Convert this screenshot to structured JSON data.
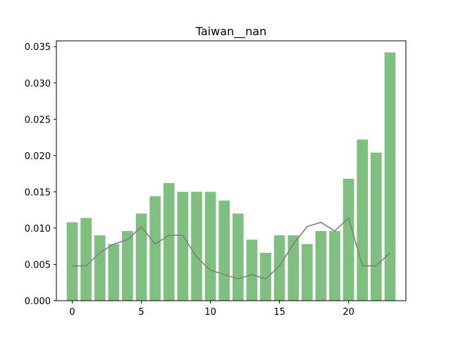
{
  "chart_data": {
    "type": "bar",
    "title": "Taiwan__nan",
    "xlabel": "",
    "ylabel": "",
    "x": [
      0,
      1,
      2,
      3,
      4,
      5,
      6,
      7,
      8,
      9,
      10,
      11,
      12,
      13,
      14,
      15,
      16,
      17,
      18,
      19,
      20,
      21,
      22,
      23
    ],
    "series": [
      {
        "type": "bar",
        "color": "#7fbf7f",
        "values": [
          0.0108,
          0.0114,
          0.009,
          0.0078,
          0.0096,
          0.012,
          0.0144,
          0.0162,
          0.015,
          0.015,
          0.015,
          0.0138,
          0.012,
          0.0084,
          0.0066,
          0.009,
          0.009,
          0.0078,
          0.0096,
          0.0096,
          0.0168,
          0.0222,
          0.0204,
          0.0342
        ]
      },
      {
        "type": "line",
        "color": "#808080",
        "values": [
          0.0048,
          0.0048,
          0.0066,
          0.0078,
          0.0084,
          0.0102,
          0.0078,
          0.009,
          0.009,
          0.006,
          0.0042,
          0.0036,
          0.003,
          0.0036,
          0.003,
          0.0048,
          0.0078,
          0.0102,
          0.0108,
          0.0096,
          0.0114,
          0.0048,
          0.0048,
          0.0066
        ]
      }
    ],
    "xlim": [
      -1.15,
      24.15
    ],
    "ylim": [
      0,
      0.0358
    ],
    "xticks": [
      0,
      5,
      10,
      15,
      20
    ],
    "xtick_labels": [
      "0",
      "5",
      "10",
      "15",
      "20"
    ],
    "yticks": [
      0.0,
      0.005,
      0.01,
      0.015,
      0.02,
      0.025,
      0.03,
      0.035
    ],
    "ytick_labels": [
      "0.000",
      "0.005",
      "0.010",
      "0.015",
      "0.020",
      "0.025",
      "0.030",
      "0.035"
    ],
    "grid": false,
    "legend": "none"
  }
}
